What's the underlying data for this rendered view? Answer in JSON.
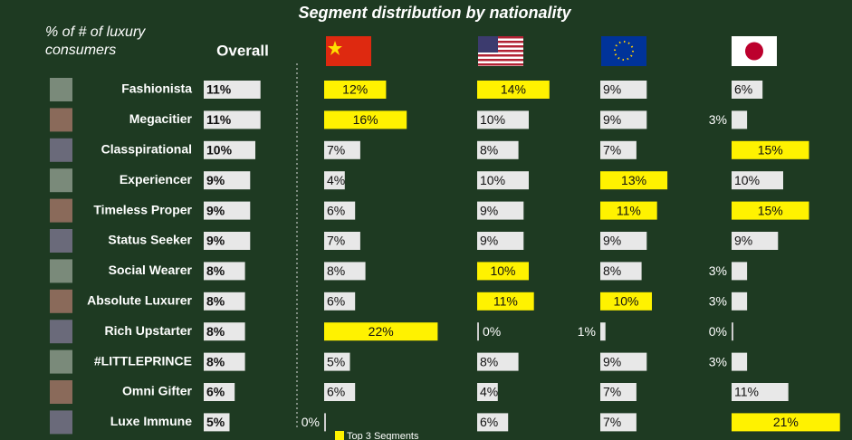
{
  "chart_data": {
    "type": "bar",
    "orientation": "horizontal",
    "title": "Segment distribution by nationality",
    "subtitle": "% of # of luxury consumers",
    "categories": [
      "Fashionista",
      "Megacitier",
      "Classpirational",
      "Experiencer",
      "Timeless Proper",
      "Status Seeker",
      "Social Wearer",
      "Absolute Luxurer",
      "Rich Upstarter",
      "#LITTLEPRINCE",
      "Omni Gifter",
      "Luxe Immune"
    ],
    "series": [
      {
        "name": "Overall",
        "color": "#e8e8e8",
        "values": [
          11,
          11,
          10,
          9,
          9,
          9,
          8,
          8,
          8,
          8,
          6,
          5
        ],
        "value_labels": [
          "11%",
          "11%",
          "10%",
          "9%",
          "9%",
          "9%",
          "8%",
          "8%",
          "8%",
          "8%",
          "6%",
          "5%"
        ],
        "highlight": []
      },
      {
        "color": "#e8e8e8",
        "values": [
          12,
          16,
          7,
          4,
          6,
          7,
          8,
          6,
          22,
          5,
          6,
          0
        ],
        "value_labels": [
          "12%",
          "16%",
          "7%",
          "4%",
          "6%",
          "7%",
          "8%",
          "6%",
          "22%",
          "5%",
          "6%",
          "0%"
        ],
        "highlight": [
          0,
          1,
          8
        ]
      },
      {
        "color": "#e8e8e8",
        "values": [
          14,
          10,
          8,
          10,
          9,
          9,
          10,
          11,
          0,
          8,
          4,
          6
        ],
        "value_labels": [
          "14%",
          "10%",
          "8%",
          "10%",
          "9%",
          "9%",
          "10%",
          "11%",
          "0%",
          "8%",
          "4%",
          "6%"
        ],
        "highlight": [
          0,
          6,
          7
        ]
      },
      {
        "color": "#e8e8e8",
        "values": [
          9,
          9,
          7,
          13,
          11,
          9,
          8,
          10,
          1,
          9,
          7,
          7
        ],
        "value_labels": [
          "9%",
          "9%",
          "7%",
          "13%",
          "11%",
          "9%",
          "8%",
          "10%",
          "1%",
          "9%",
          "7%",
          "7%"
        ],
        "highlight": [
          3,
          4,
          7
        ]
      },
      {
        "color": "#e8e8e8",
        "values": [
          6,
          3,
          15,
          10,
          15,
          9,
          3,
          3,
          0,
          3,
          11,
          21
        ],
        "value_labels": [
          "6%",
          "3%",
          "15%",
          "10%",
          "15%",
          "9%",
          "3%",
          "3%",
          "0%",
          "3%",
          "11%",
          "21%"
        ],
        "highlight": [
          2,
          4,
          11
        ]
      }
    ],
    "highlight_color": "#fff200",
    "legend": "Top 3 Segments"
  }
}
